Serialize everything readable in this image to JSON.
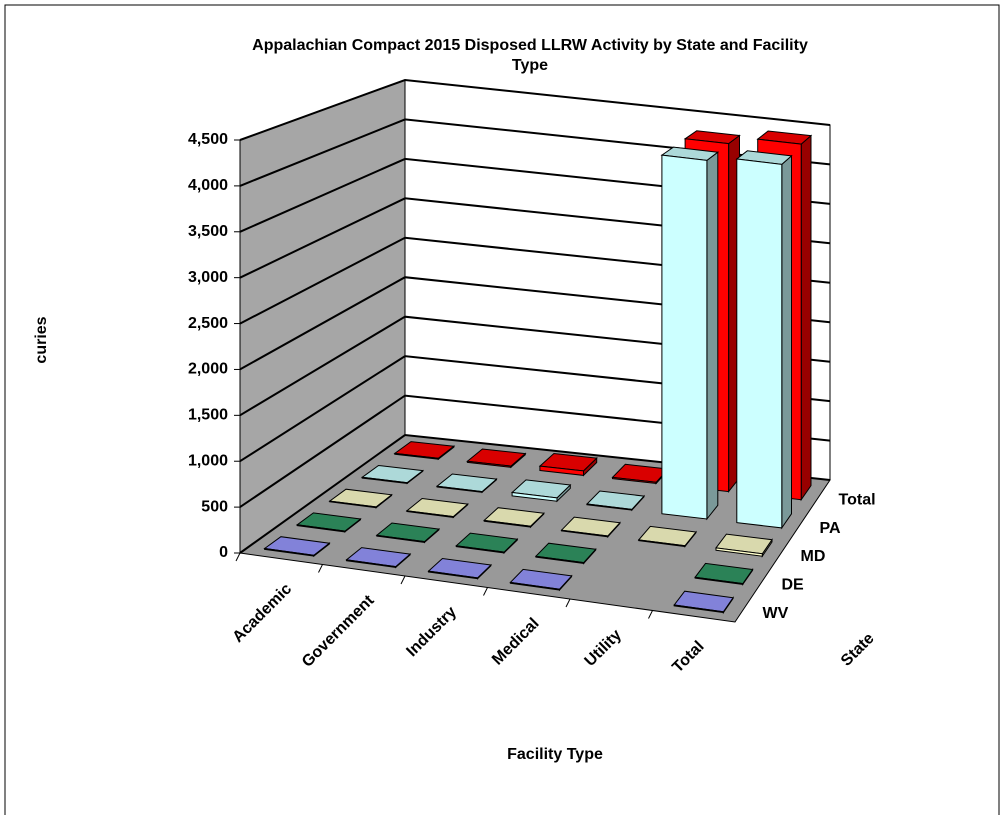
{
  "chart_data": {
    "type": "bar3d",
    "title": "Appalachian Compact 2015 Disposed LLRW Activity by State and Facility Type",
    "y_label": "curies",
    "x_label": "Facility Type",
    "z_label": "State",
    "categories": [
      "Academic",
      "Government",
      "Industry",
      "Medical",
      "Utility",
      "Total"
    ],
    "series": [
      {
        "name": "WV",
        "color": "#9999ff",
        "values": [
          2,
          1,
          3,
          2,
          null,
          8
        ]
      },
      {
        "name": "DE",
        "color": "#339966",
        "values": [
          1,
          1,
          2,
          1,
          null,
          5
        ]
      },
      {
        "name": "MD",
        "color": "#ffffcc",
        "values": [
          3,
          4,
          10,
          6,
          5,
          28
        ]
      },
      {
        "name": "PA",
        "color": "#ccffff",
        "values": [
          5,
          8,
          40,
          6,
          4300,
          4359
        ]
      },
      {
        "name": "Total",
        "color": "#ff0000",
        "values": [
          11,
          14,
          55,
          15,
          4305,
          4400
        ]
      }
    ],
    "ylim": [
      0,
      4500
    ],
    "yticks": [
      0,
      500,
      {
        "value": 1000,
        "label": "1,000"
      },
      {
        "value": 1500,
        "label": "1,500"
      },
      {
        "value": 2000,
        "label": "2,000"
      },
      {
        "value": 2500,
        "label": "2,500"
      },
      {
        "value": 3000,
        "label": "3,000"
      },
      {
        "value": 3500,
        "label": "3,500"
      },
      {
        "value": 4000,
        "label": "4,000"
      },
      {
        "value": 4500,
        "label": "4,500"
      }
    ],
    "grid": true
  }
}
